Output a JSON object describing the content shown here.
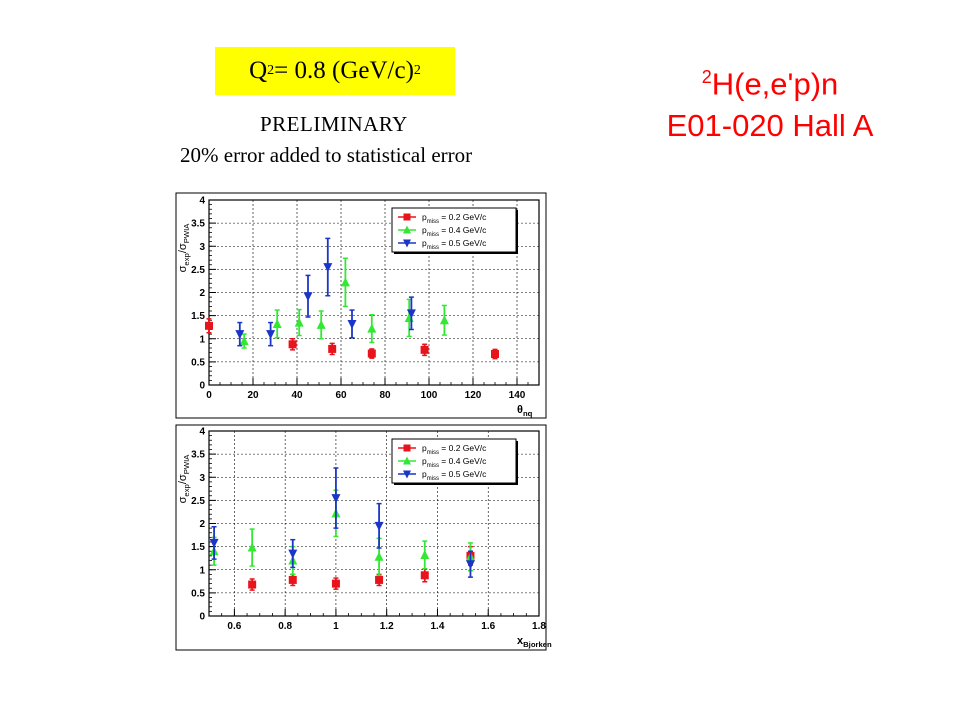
{
  "header": {
    "q2_label": "Q",
    "q2_exp": "2",
    "q2_value": " = 0.8 (GeV/c)",
    "q2_unit_exp": "2",
    "preliminary": "PRELIMINARY",
    "error_note": "20% error added to statistical error"
  },
  "reaction": {
    "superscript": "2",
    "formula": "H(e,e'p)n",
    "experiment": "E01-020 Hall A"
  },
  "colors": {
    "series1": "#e8141c",
    "series2": "#33e833",
    "series3": "#1a35c8",
    "title_red": "#ff0000",
    "highlight_yellow": "#ffff00"
  },
  "chart_data": [
    {
      "type": "scatter",
      "xlabel": "θ",
      "xlabel_sub": "nq",
      "ylabel": "σ",
      "ylabel_sub1": "exp",
      "ylabel_mid": "/σ",
      "ylabel_sub2": "PWIA",
      "xlim": [
        0,
        150
      ],
      "ylim": [
        0,
        4
      ],
      "x_ticks": [
        0,
        20,
        40,
        60,
        80,
        100,
        120,
        140
      ],
      "y_ticks": [
        0,
        0.5,
        1,
        1.5,
        2,
        2.5,
        3,
        3.5,
        4
      ],
      "x_tick_labels": [
        "0",
        "20",
        "40",
        "60",
        "80",
        "100",
        "120",
        "140"
      ],
      "y_tick_labels": [
        "0",
        "0.5",
        "1",
        "1.5",
        "2",
        "2.5",
        "3",
        "3.5",
        "4"
      ],
      "grid": true,
      "legend_position": "top-right",
      "series": [
        {
          "name": "p",
          "name_sub": "miss",
          "name_rest": " = 0.2 GeV/c",
          "marker": "square",
          "color": "#e8141c",
          "points": [
            {
              "x": 0,
              "y": 1.28,
              "err": 0.15
            },
            {
              "x": 38,
              "y": 0.88,
              "err": 0.12
            },
            {
              "x": 56,
              "y": 0.78,
              "err": 0.12
            },
            {
              "x": 74,
              "y": 0.68,
              "err": 0.1
            },
            {
              "x": 98,
              "y": 0.76,
              "err": 0.12
            },
            {
              "x": 130,
              "y": 0.67,
              "err": 0.1
            }
          ]
        },
        {
          "name": "p",
          "name_sub": "miss",
          "name_rest": " = 0.4 GeV/c",
          "marker": "triangle-up",
          "color": "#33e833",
          "points": [
            {
              "x": 16,
              "y": 0.95,
              "err": 0.15
            },
            {
              "x": 31,
              "y": 1.32,
              "err": 0.3
            },
            {
              "x": 41,
              "y": 1.35,
              "err": 0.28
            },
            {
              "x": 51,
              "y": 1.3,
              "err": 0.3
            },
            {
              "x": 62,
              "y": 2.22,
              "err": 0.52
            },
            {
              "x": 74,
              "y": 1.22,
              "err": 0.3
            },
            {
              "x": 91,
              "y": 1.45,
              "err": 0.4
            },
            {
              "x": 107,
              "y": 1.4,
              "err": 0.32
            }
          ]
        },
        {
          "name": "p",
          "name_sub": "miss",
          "name_rest": " = 0.5 GeV/c",
          "marker": "triangle-down",
          "color": "#1a35c8",
          "points": [
            {
              "x": 14,
              "y": 1.1,
              "err": 0.25
            },
            {
              "x": 28,
              "y": 1.1,
              "err": 0.25
            },
            {
              "x": 45,
              "y": 1.92,
              "err": 0.45
            },
            {
              "x": 54,
              "y": 2.55,
              "err": 0.62
            },
            {
              "x": 65,
              "y": 1.32,
              "err": 0.3
            },
            {
              "x": 92,
              "y": 1.55,
              "err": 0.35
            }
          ]
        }
      ]
    },
    {
      "type": "scatter",
      "xlabel": "x",
      "xlabel_sub": "Bjorken",
      "ylabel": "σ",
      "ylabel_sub1": "exp",
      "ylabel_mid": "/σ",
      "ylabel_sub2": "PWIA",
      "xlim": [
        0.5,
        1.8
      ],
      "ylim": [
        0,
        4
      ],
      "x_ticks": [
        0.6,
        0.8,
        1.0,
        1.2,
        1.4,
        1.6,
        1.8
      ],
      "y_ticks": [
        0,
        0.5,
        1,
        1.5,
        2,
        2.5,
        3,
        3.5,
        4
      ],
      "x_tick_labels": [
        "0.6",
        "0.8",
        "1",
        "1.2",
        "1.4",
        "1.6",
        "1.8"
      ],
      "y_tick_labels": [
        "0",
        "0.5",
        "1",
        "1.5",
        "2",
        "2.5",
        "3",
        "3.5",
        "4"
      ],
      "grid": true,
      "legend_position": "top-right",
      "series": [
        {
          "name": "p",
          "name_sub": "miss",
          "name_rest": " = 0.2 GeV/c",
          "marker": "square",
          "color": "#e8141c",
          "points": [
            {
              "x": 0.67,
              "y": 0.68,
              "err": 0.12
            },
            {
              "x": 0.83,
              "y": 0.78,
              "err": 0.12
            },
            {
              "x": 1.0,
              "y": 0.7,
              "err": 0.12
            },
            {
              "x": 1.17,
              "y": 0.78,
              "err": 0.12
            },
            {
              "x": 1.35,
              "y": 0.88,
              "err": 0.14
            },
            {
              "x": 1.53,
              "y": 1.3,
              "err": 0.2
            }
          ]
        },
        {
          "name": "p",
          "name_sub": "miss",
          "name_rest": " = 0.4 GeV/c",
          "marker": "triangle-up",
          "color": "#33e833",
          "points": [
            {
              "x": 0.52,
              "y": 1.4,
              "err": 0.3
            },
            {
              "x": 0.67,
              "y": 1.48,
              "err": 0.4
            },
            {
              "x": 0.83,
              "y": 1.2,
              "err": 0.3
            },
            {
              "x": 1.0,
              "y": 2.22,
              "err": 0.5
            },
            {
              "x": 1.17,
              "y": 1.28,
              "err": 0.4
            },
            {
              "x": 1.35,
              "y": 1.32,
              "err": 0.3
            },
            {
              "x": 1.53,
              "y": 1.28,
              "err": 0.3
            }
          ]
        },
        {
          "name": "p",
          "name_sub": "miss",
          "name_rest": " = 0.5 GeV/c",
          "marker": "triangle-down",
          "color": "#1a35c8",
          "points": [
            {
              "x": 0.52,
              "y": 1.58,
              "err": 0.35
            },
            {
              "x": 0.83,
              "y": 1.35,
              "err": 0.3
            },
            {
              "x": 1.0,
              "y": 2.55,
              "err": 0.65
            },
            {
              "x": 1.17,
              "y": 1.95,
              "err": 0.48
            },
            {
              "x": 1.53,
              "y": 1.12,
              "err": 0.28
            }
          ]
        }
      ]
    }
  ]
}
